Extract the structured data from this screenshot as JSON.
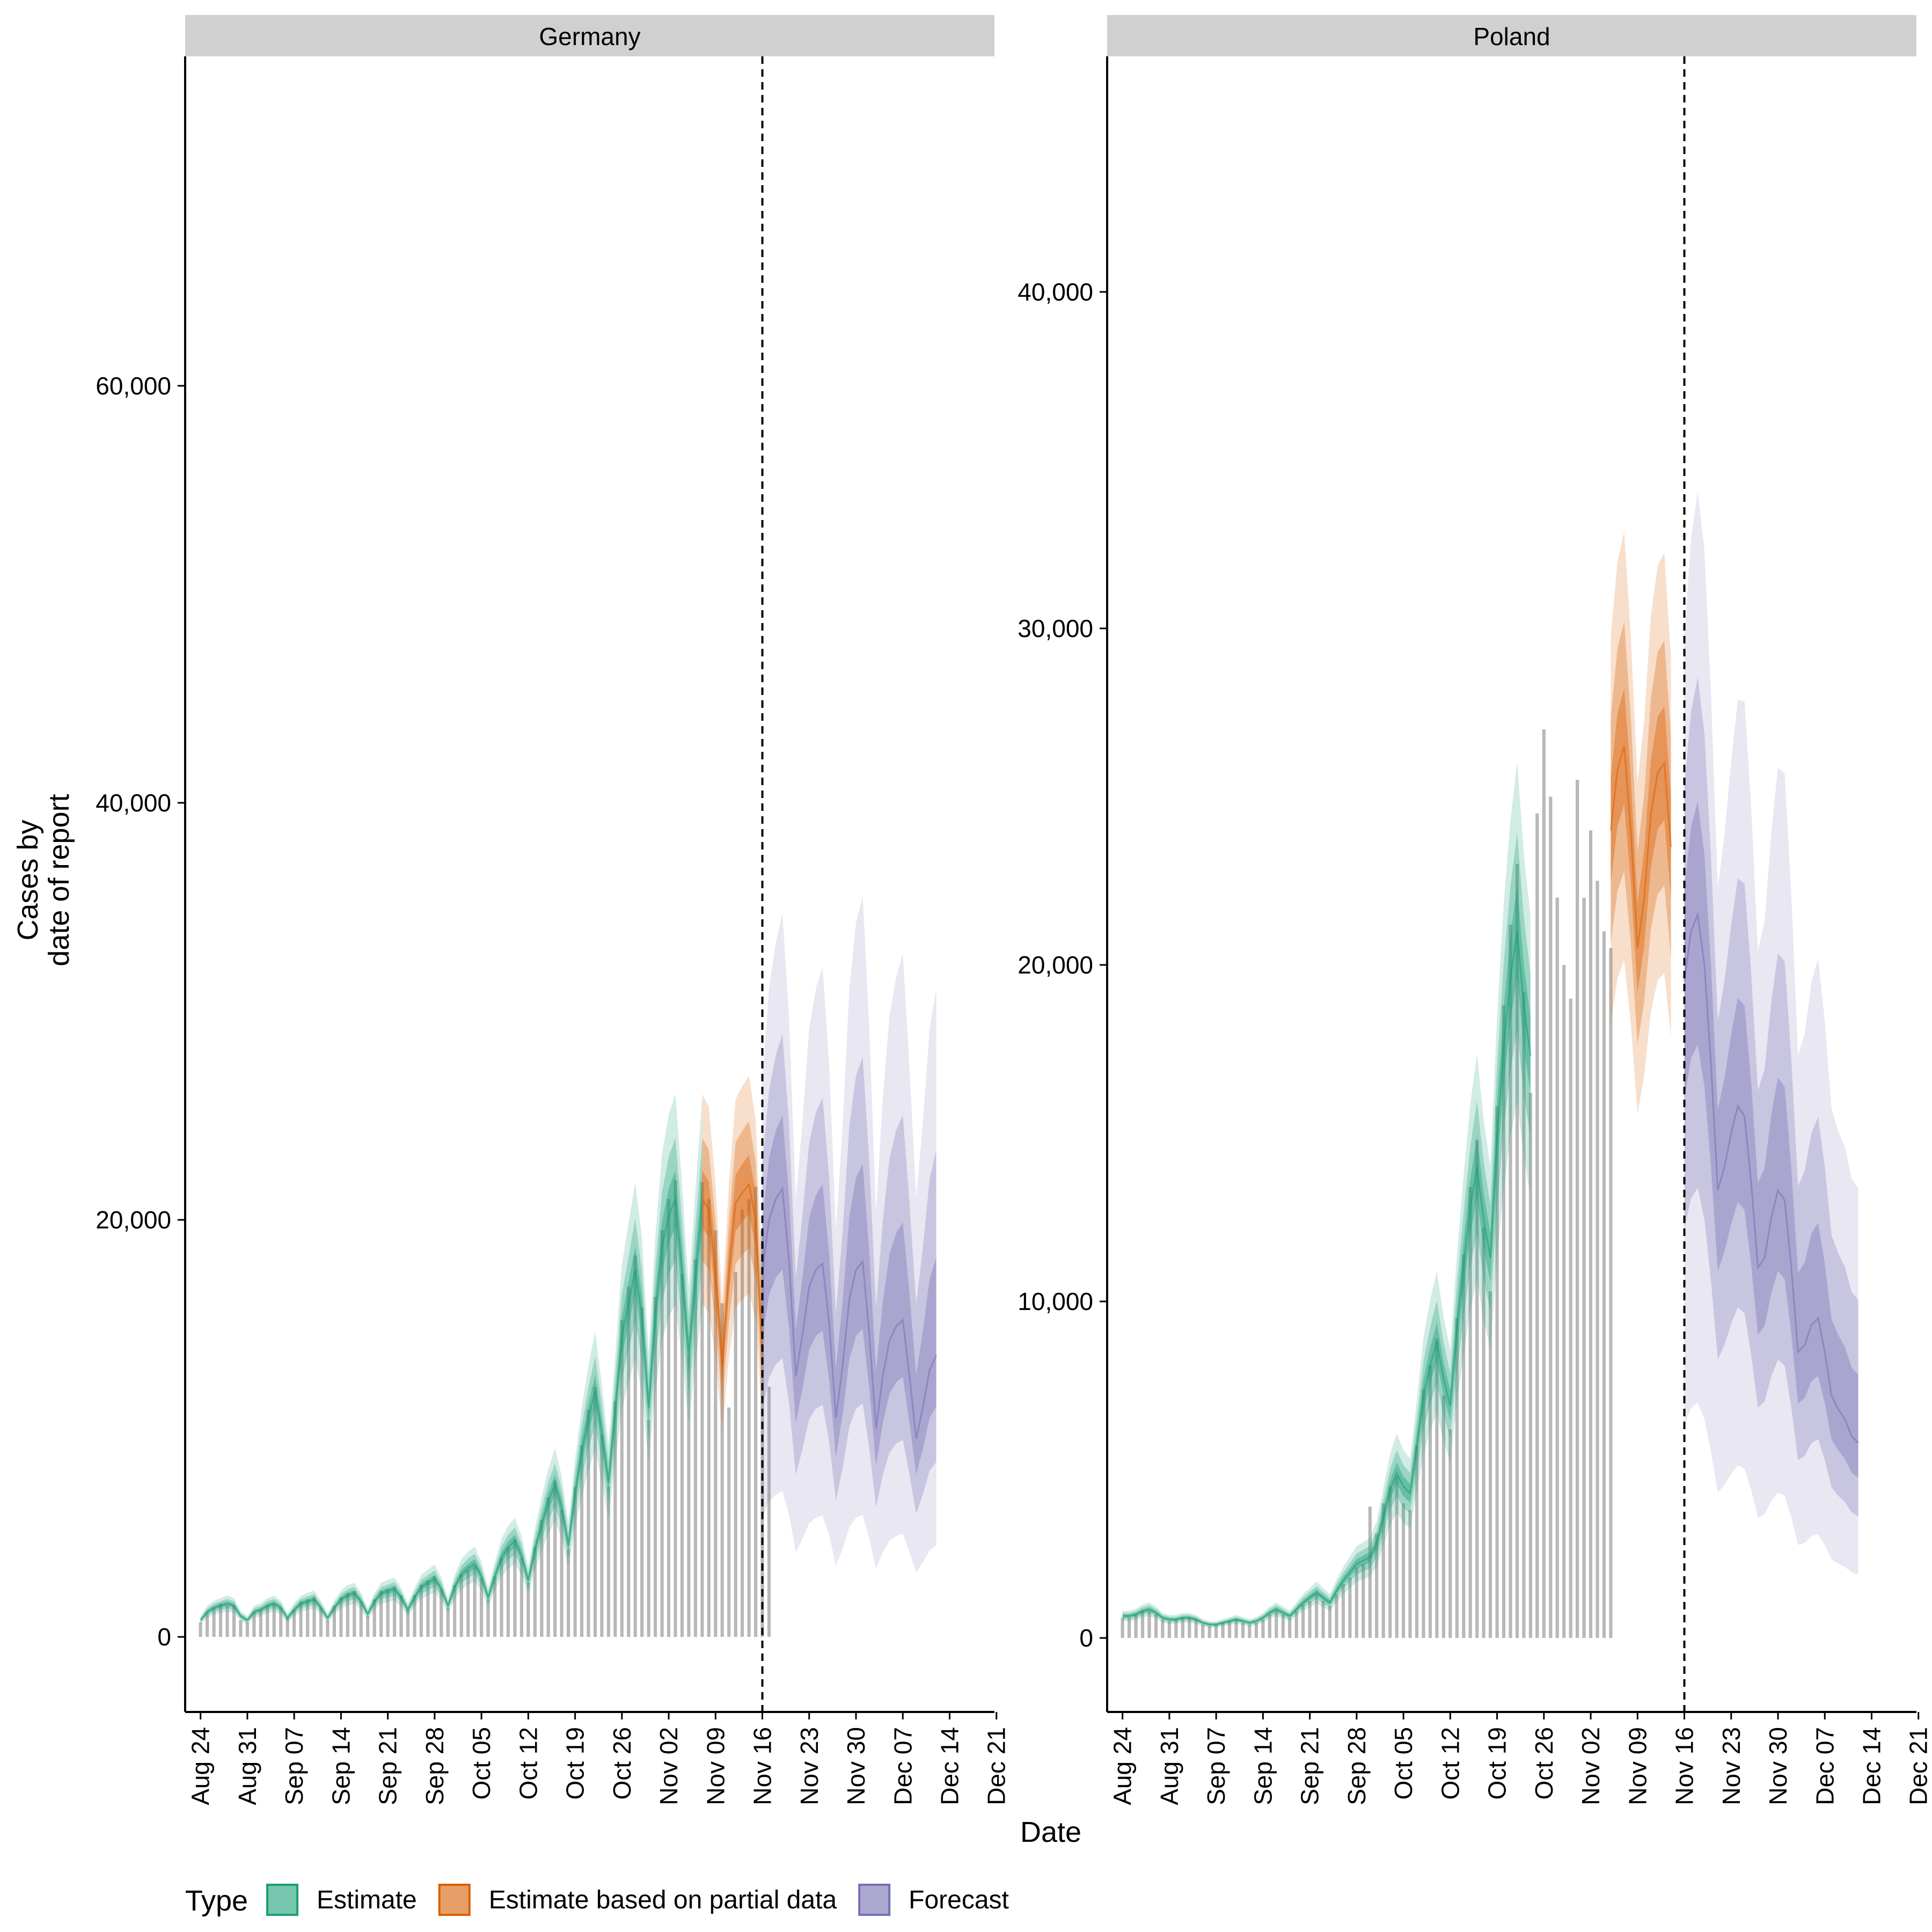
{
  "colors": {
    "estimate": "#1b9e77",
    "partial": "#d95f02",
    "forecast": "#7570b3",
    "bars": "#b8b8b8",
    "strip": "#d0d0d0"
  },
  "axes": {
    "x_title": "Date",
    "y_title_lines": [
      "Cases by",
      "date of report"
    ]
  },
  "legend": {
    "title": "Type",
    "items": [
      {
        "label": "Estimate",
        "key": "estimate"
      },
      {
        "label": "Estimate based on partial data",
        "key": "partial"
      },
      {
        "label": "Forecast",
        "key": "forecast"
      }
    ]
  },
  "chart_data": [
    {
      "type": "area",
      "panel": "Germany",
      "x_tick_labels": [
        "Aug 24",
        "Aug 31",
        "Sep 07",
        "Sep 14",
        "Sep 21",
        "Sep 28",
        "Oct 05",
        "Oct 12",
        "Oct 19",
        "Oct 26",
        "Nov 02",
        "Nov 09",
        "Nov 16",
        "Nov 23",
        "Nov 30",
        "Dec 07",
        "Dec 14",
        "Dec 21"
      ],
      "y_tick_labels": [
        "0",
        "20,000",
        "40,000",
        "60,000"
      ],
      "y_ticks": [
        0,
        20000,
        40000,
        60000
      ],
      "ylim": [
        -3600,
        75800
      ],
      "date_range": [
        "Aug 24",
        "Dec 21"
      ],
      "forecast_start": "Nov 16",
      "reported_cases": {
        "start": "Aug 24",
        "values": [
          700,
          1200,
          1400,
          1600,
          1500,
          1500,
          800,
          700,
          1200,
          1300,
          1500,
          1600,
          1400,
          900,
          1300,
          1700,
          1800,
          1900,
          1400,
          800,
          1500,
          1900,
          2100,
          2200,
          1700,
          1000,
          1800,
          2200,
          2300,
          2400,
          2000,
          1300,
          2000,
          2500,
          2700,
          2900,
          2300,
          1400,
          2500,
          3000,
          3200,
          3400,
          2800,
          1800,
          2900,
          3800,
          4300,
          4700,
          3800,
          2600,
          4300,
          5600,
          6700,
          7500,
          6100,
          4200,
          7200,
          9200,
          10900,
          12000,
          9700,
          7200,
          11300,
          15200,
          16800,
          18300,
          15800,
          10400,
          16300,
          19500,
          21000,
          21900,
          17400,
          13500,
          18100,
          21800,
          21000,
          19500,
          16000,
          11000,
          17500,
          20500,
          21000,
          21600,
          19500,
          12000
        ]
      },
      "series": [
        {
          "name": "Estimate",
          "x_start": "Aug 24",
          "median": [
            800,
            1200,
            1400,
            1500,
            1600,
            1500,
            1000,
            800,
            1200,
            1300,
            1500,
            1600,
            1400,
            900,
            1300,
            1600,
            1700,
            1800,
            1400,
            900,
            1400,
            1800,
            2000,
            2100,
            1700,
            1100,
            1700,
            2100,
            2200,
            2300,
            1900,
            1300,
            1900,
            2400,
            2600,
            2800,
            2300,
            1500,
            2400,
            3000,
            3300,
            3500,
            2900,
            1900,
            2900,
            3800,
            4300,
            4600,
            3900,
            2700,
            4200,
            5400,
            6500,
            7300,
            6200,
            4400,
            6900,
            8900,
            10500,
            11800,
            9800,
            7400,
            10900,
            14400,
            16000,
            17600,
            15400,
            11000,
            15500,
            18700,
            20200,
            21000,
            17500,
            13500,
            17300,
            20800
          ]
        },
        {
          "name": "Estimate based on partial data",
          "x_start": "Nov 07",
          "median": [
            21000,
            20500,
            17500,
            13000,
            17500,
            20800,
            21300,
            21700,
            20000,
            13500
          ]
        },
        {
          "name": "Forecast",
          "x_start": "Nov 16",
          "median": [
            17500,
            20000,
            21000,
            21500,
            18000,
            12500,
            14500,
            16800,
            17600,
            17900,
            15000,
            10500,
            13000,
            16200,
            17600,
            18000,
            14500,
            10000,
            12500,
            14200,
            14900,
            15200,
            12500,
            9500,
            11000,
            12800,
            13500
          ]
        }
      ]
    },
    {
      "type": "area",
      "panel": "Poland",
      "x_tick_labels": [
        "Aug 24",
        "Aug 31",
        "Sep 07",
        "Sep 14",
        "Sep 21",
        "Sep 28",
        "Oct 05",
        "Oct 12",
        "Oct 19",
        "Oct 26",
        "Nov 02",
        "Nov 09",
        "Nov 16",
        "Nov 23",
        "Nov 30",
        "Dec 07",
        "Dec 14",
        "Dec 21"
      ],
      "y_tick_labels": [
        "0",
        "10,000",
        "20,000",
        "30,000",
        "40,000"
      ],
      "y_ticks": [
        0,
        10000,
        20000,
        30000,
        40000
      ],
      "ylim": [
        -2200,
        47000
      ],
      "date_range": [
        "Aug 24",
        "Dec 21"
      ],
      "forecast_start": "Nov 16",
      "reported_cases": {
        "start": "Aug 24",
        "values": [
          600,
          600,
          700,
          800,
          800,
          700,
          550,
          500,
          550,
          600,
          600,
          550,
          400,
          350,
          400,
          450,
          500,
          550,
          450,
          400,
          450,
          550,
          700,
          800,
          700,
          600,
          800,
          1000,
          1100,
          1300,
          1100,
          950,
          1300,
          1600,
          1800,
          2100,
          2200,
          3900,
          3100,
          4000,
          4500,
          4800,
          4000,
          3800,
          5700,
          7400,
          8100,
          8900,
          7200,
          6200,
          9500,
          11400,
          13400,
          14800,
          12200,
          10300,
          15800,
          18800,
          21200,
          23000,
          19200,
          16200,
          24500,
          27000,
          25000,
          22000,
          20000,
          19000,
          25500,
          22000,
          24000,
          22500,
          21000,
          20500
        ]
      },
      "series": [
        {
          "name": "Estimate",
          "x_start": "Aug 24",
          "median": [
            650,
            650,
            700,
            800,
            850,
            750,
            600,
            550,
            550,
            600,
            600,
            550,
            450,
            400,
            400,
            450,
            500,
            550,
            500,
            450,
            500,
            600,
            750,
            850,
            750,
            650,
            850,
            1050,
            1200,
            1350,
            1200,
            1050,
            1400,
            1700,
            1950,
            2200,
            2300,
            2400,
            2800,
            3600,
            4400,
            4900,
            4500,
            4300,
            5700,
            7200,
            8100,
            8800,
            7700,
            6900,
            9200,
            11100,
            12800,
            14000,
            12400,
            11300,
            14900,
            17600,
            19600,
            21000,
            18800,
            17300
          ]
        },
        {
          "name": "Estimate based on partial data",
          "x_start": "Nov 05",
          "median": [
            24000,
            25800,
            26500,
            24000,
            20500,
            22000,
            24500,
            25700,
            26000,
            23500
          ]
        },
        {
          "name": "Forecast",
          "x_start": "Nov 16",
          "median": [
            19500,
            21000,
            21500,
            20000,
            17000,
            13300,
            14000,
            15000,
            15800,
            15500,
            13500,
            11000,
            11300,
            12500,
            13300,
            13000,
            11000,
            8500,
            8700,
            9300,
            9500,
            8500,
            7200,
            6800,
            6500,
            6000,
            5800
          ]
        }
      ]
    }
  ]
}
